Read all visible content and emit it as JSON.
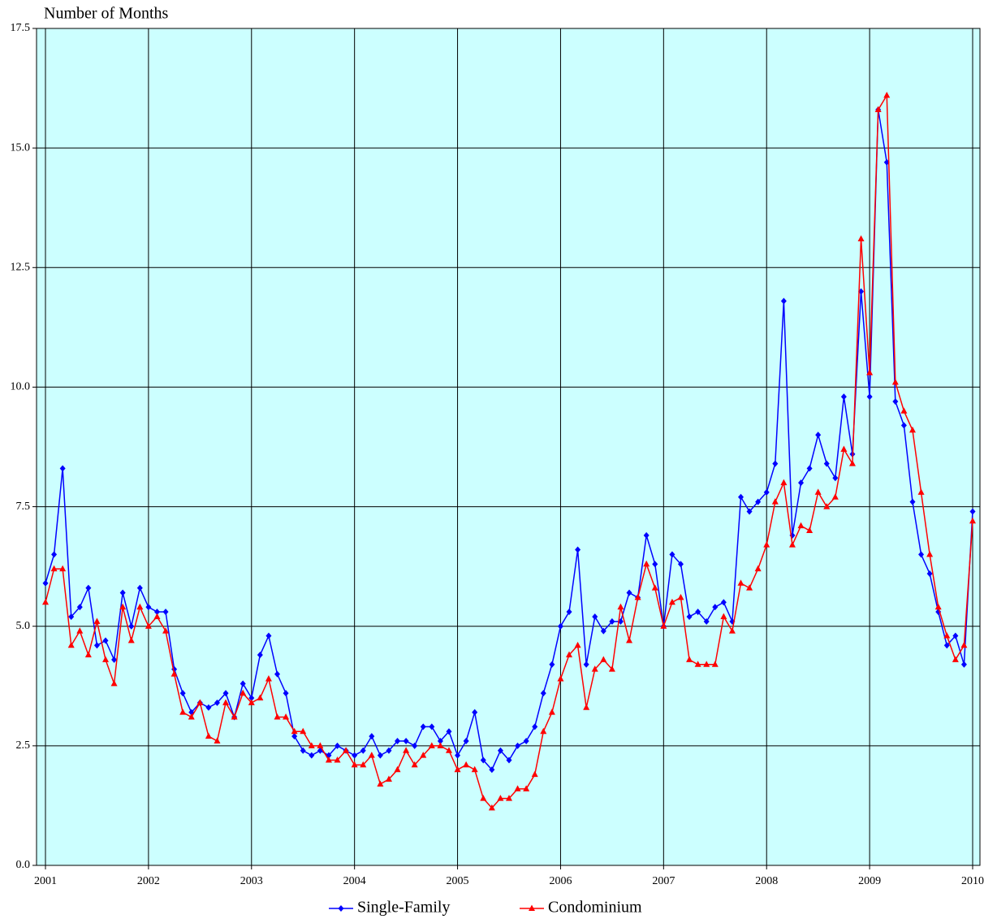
{
  "chart_data": {
    "type": "line",
    "y_axis_label": "Number of Months",
    "categories": [
      "2001",
      null,
      null,
      null,
      null,
      null,
      null,
      null,
      null,
      null,
      null,
      null,
      "2002",
      null,
      null,
      null,
      null,
      null,
      null,
      null,
      null,
      null,
      null,
      null,
      "2003",
      null,
      null,
      null,
      null,
      null,
      null,
      null,
      null,
      null,
      null,
      null,
      "2004",
      null,
      null,
      null,
      null,
      null,
      null,
      null,
      null,
      null,
      null,
      null,
      "2005",
      null,
      null,
      null,
      null,
      null,
      null,
      null,
      null,
      null,
      null,
      null,
      "2006",
      null,
      null,
      null,
      null,
      null,
      null,
      null,
      null,
      null,
      null,
      null,
      "2007",
      null,
      null,
      null,
      null,
      null,
      null,
      null,
      null,
      null,
      null,
      null,
      "2008",
      null,
      null,
      null,
      null,
      null,
      null,
      null,
      null,
      null,
      null,
      null,
      "2009",
      null,
      null,
      null,
      null,
      null,
      null,
      null,
      null,
      null,
      null,
      null,
      "2010"
    ],
    "series": [
      {
        "name": "Single-Family",
        "color": "#0000ff",
        "marker": "diamond",
        "values": [
          5.9,
          6.5,
          8.3,
          5.2,
          5.4,
          5.8,
          4.6,
          4.7,
          4.3,
          5.7,
          5.0,
          5.8,
          5.4,
          5.3,
          5.3,
          4.1,
          3.6,
          3.2,
          3.4,
          3.3,
          3.4,
          3.6,
          3.1,
          3.8,
          3.5,
          4.4,
          4.8,
          4.0,
          3.6,
          2.7,
          2.4,
          2.3,
          2.4,
          2.3,
          2.5,
          2.4,
          2.3,
          2.4,
          2.7,
          2.3,
          2.4,
          2.6,
          2.6,
          2.5,
          2.9,
          2.9,
          2.6,
          2.8,
          2.3,
          2.6,
          3.2,
          2.2,
          2.0,
          2.4,
          2.2,
          2.5,
          2.6,
          2.9,
          3.6,
          4.2,
          5.0,
          5.3,
          6.6,
          4.2,
          5.2,
          4.9,
          5.1,
          5.1,
          5.7,
          5.6,
          6.9,
          6.3,
          5.0,
          6.5,
          6.3,
          5.2,
          5.3,
          5.1,
          5.4,
          5.5,
          5.1,
          7.7,
          7.4,
          7.6,
          7.8,
          8.4,
          11.8,
          6.9,
          8.0,
          8.3,
          9.0,
          8.4,
          8.1,
          9.8,
          8.6,
          12.0,
          9.8,
          15.8,
          14.7,
          9.7,
          9.2,
          7.6,
          6.5,
          6.1,
          5.3,
          4.6,
          4.8,
          4.2,
          7.4
        ]
      },
      {
        "name": "Condominium",
        "color": "#ff0000",
        "marker": "triangle",
        "values": [
          5.5,
          6.2,
          6.2,
          4.6,
          4.9,
          4.4,
          5.1,
          4.3,
          3.8,
          5.4,
          4.7,
          5.4,
          5.0,
          5.2,
          4.9,
          4.0,
          3.2,
          3.1,
          3.4,
          2.7,
          2.6,
          3.4,
          3.1,
          3.6,
          3.4,
          3.5,
          3.9,
          3.1,
          3.1,
          2.8,
          2.8,
          2.5,
          2.5,
          2.2,
          2.2,
          2.4,
          2.1,
          2.1,
          2.3,
          1.7,
          1.8,
          2.0,
          2.4,
          2.1,
          2.3,
          2.5,
          2.5,
          2.4,
          2.0,
          2.1,
          2.0,
          1.4,
          1.2,
          1.4,
          1.4,
          1.6,
          1.6,
          1.9,
          2.8,
          3.2,
          3.9,
          4.4,
          4.6,
          3.3,
          4.1,
          4.3,
          4.1,
          5.4,
          4.7,
          5.6,
          6.3,
          5.8,
          5.0,
          5.5,
          5.6,
          4.3,
          4.2,
          4.2,
          4.2,
          5.2,
          4.9,
          5.9,
          5.8,
          6.2,
          6.7,
          7.6,
          8.0,
          6.7,
          7.1,
          7.0,
          7.8,
          7.5,
          7.7,
          8.7,
          8.4,
          13.1,
          10.3,
          15.8,
          16.1,
          10.1,
          9.5,
          9.1,
          7.8,
          6.5,
          5.4,
          4.8,
          4.3,
          4.6,
          7.2
        ]
      }
    ],
    "ylim": [
      0,
      17.5
    ],
    "yticks": [
      {
        "value": 0,
        "label": "0.0"
      },
      2.5,
      {
        "value": 5,
        "label": "5.0"
      },
      7.5,
      {
        "value": 10,
        "label": "10.0"
      },
      12.5,
      {
        "value": 15,
        "label": "15.0"
      },
      17.5
    ],
    "grid": true,
    "background": "#ccffff",
    "legend": "bottom"
  }
}
